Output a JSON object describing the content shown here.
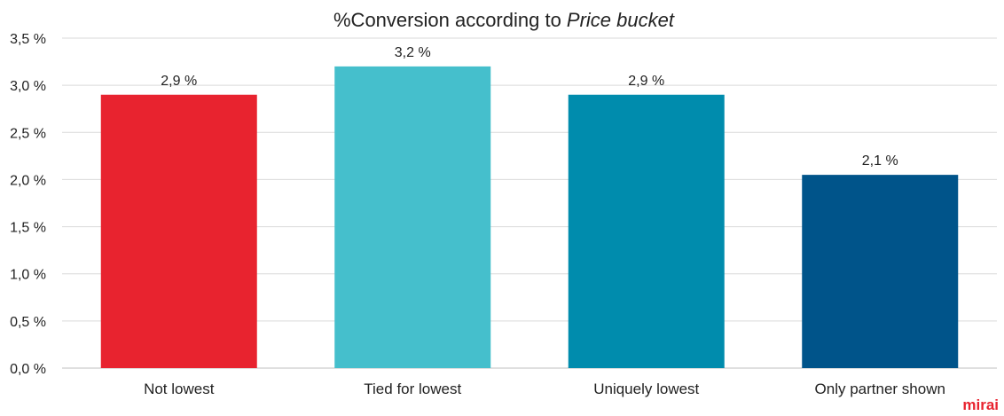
{
  "chart_data": {
    "type": "bar",
    "title": "%Conversion according to ",
    "title_emphasis": "Price bucket",
    "categories": [
      "Not lowest",
      "Tied for lowest",
      "Uniquely lowest",
      "Only partner shown"
    ],
    "values": [
      2.9,
      3.2,
      2.9,
      2.05
    ],
    "data_labels": [
      "2,9 %",
      "3,2 %",
      "2,9 %",
      "2,1 %"
    ],
    "colors": [
      "#e8232f",
      "#45bfcc",
      "#008cad",
      "#00548a"
    ],
    "ylim": [
      0,
      3.5
    ],
    "yticks": [
      0,
      0.5,
      1.0,
      1.5,
      2.0,
      2.5,
      3.0,
      3.5
    ],
    "ytick_labels": [
      "0,0 %",
      "0,5 %",
      "1,0 %",
      "1,5 %",
      "2,0 %",
      "2,5 %",
      "3,0 %",
      "3,5 %"
    ],
    "xlabel": "",
    "ylabel": "",
    "grid": true,
    "legend": "none"
  },
  "brand": {
    "logo_text": "mirai",
    "color": "#e8232f"
  }
}
